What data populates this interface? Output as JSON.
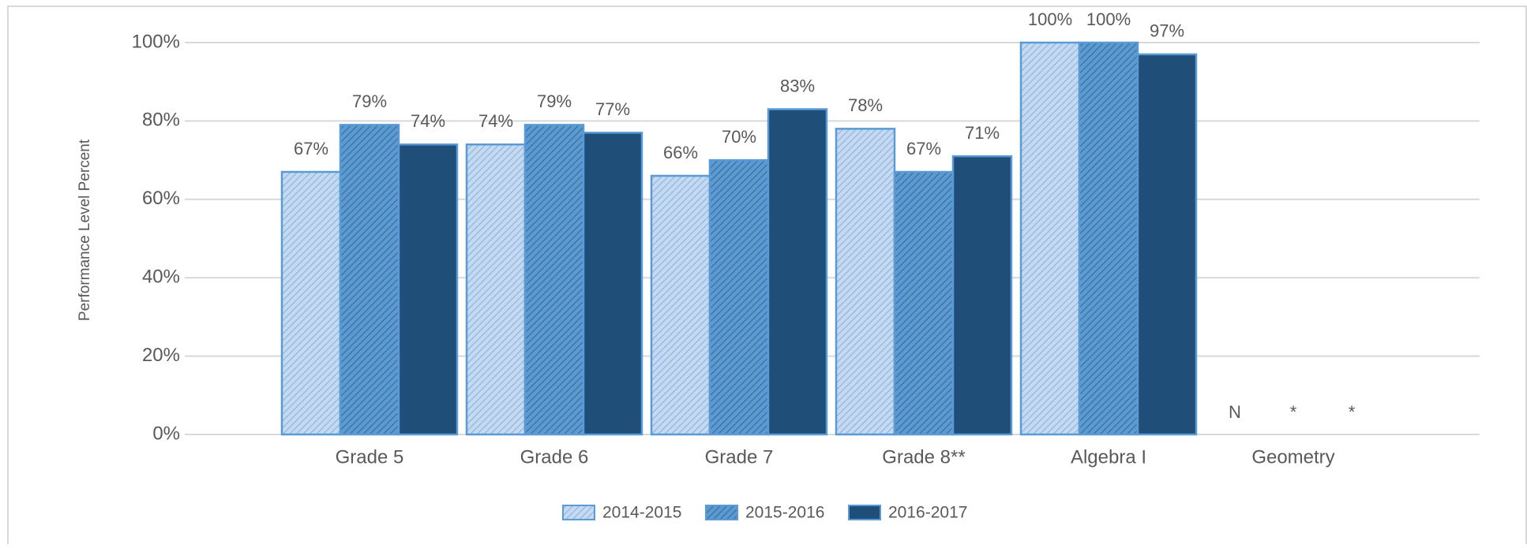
{
  "chart_data": {
    "type": "bar",
    "y_label": "Performance Level Percent",
    "categories": [
      "Grade 5",
      "Grade 6",
      "Grade 7",
      "Grade 8**",
      "Algebra I",
      "Geometry"
    ],
    "series": [
      {
        "name": "2014-2015",
        "color": "#c5daf1",
        "hatched": true,
        "values": [
          67,
          74,
          66,
          78,
          100,
          null
        ],
        "value_labels": [
          "67%",
          "74%",
          "66%",
          "78%",
          "100%",
          "N"
        ]
      },
      {
        "name": "2015-2016",
        "color": "#5b9bd5",
        "hatched": true,
        "values": [
          79,
          79,
          70,
          67,
          100,
          null
        ],
        "value_labels": [
          "79%",
          "79%",
          "70%",
          "67%",
          "100%",
          "*"
        ]
      },
      {
        "name": "2016-2017",
        "color": "#1f4e79",
        "hatched": false,
        "values": [
          74,
          77,
          83,
          71,
          97,
          null
        ],
        "value_labels": [
          "74%",
          "77%",
          "83%",
          "71%",
          "97%",
          "*"
        ]
      }
    ],
    "ylim": [
      0,
      100
    ],
    "yticks": [
      {
        "value": 0,
        "label": "0%"
      },
      {
        "value": 20,
        "label": "20%"
      },
      {
        "value": 40,
        "label": "40%"
      },
      {
        "value": 60,
        "label": "60%"
      },
      {
        "value": 80,
        "label": "80%"
      },
      {
        "value": 100,
        "label": "100%"
      }
    ],
    "grid": true,
    "legend": "bottom"
  }
}
